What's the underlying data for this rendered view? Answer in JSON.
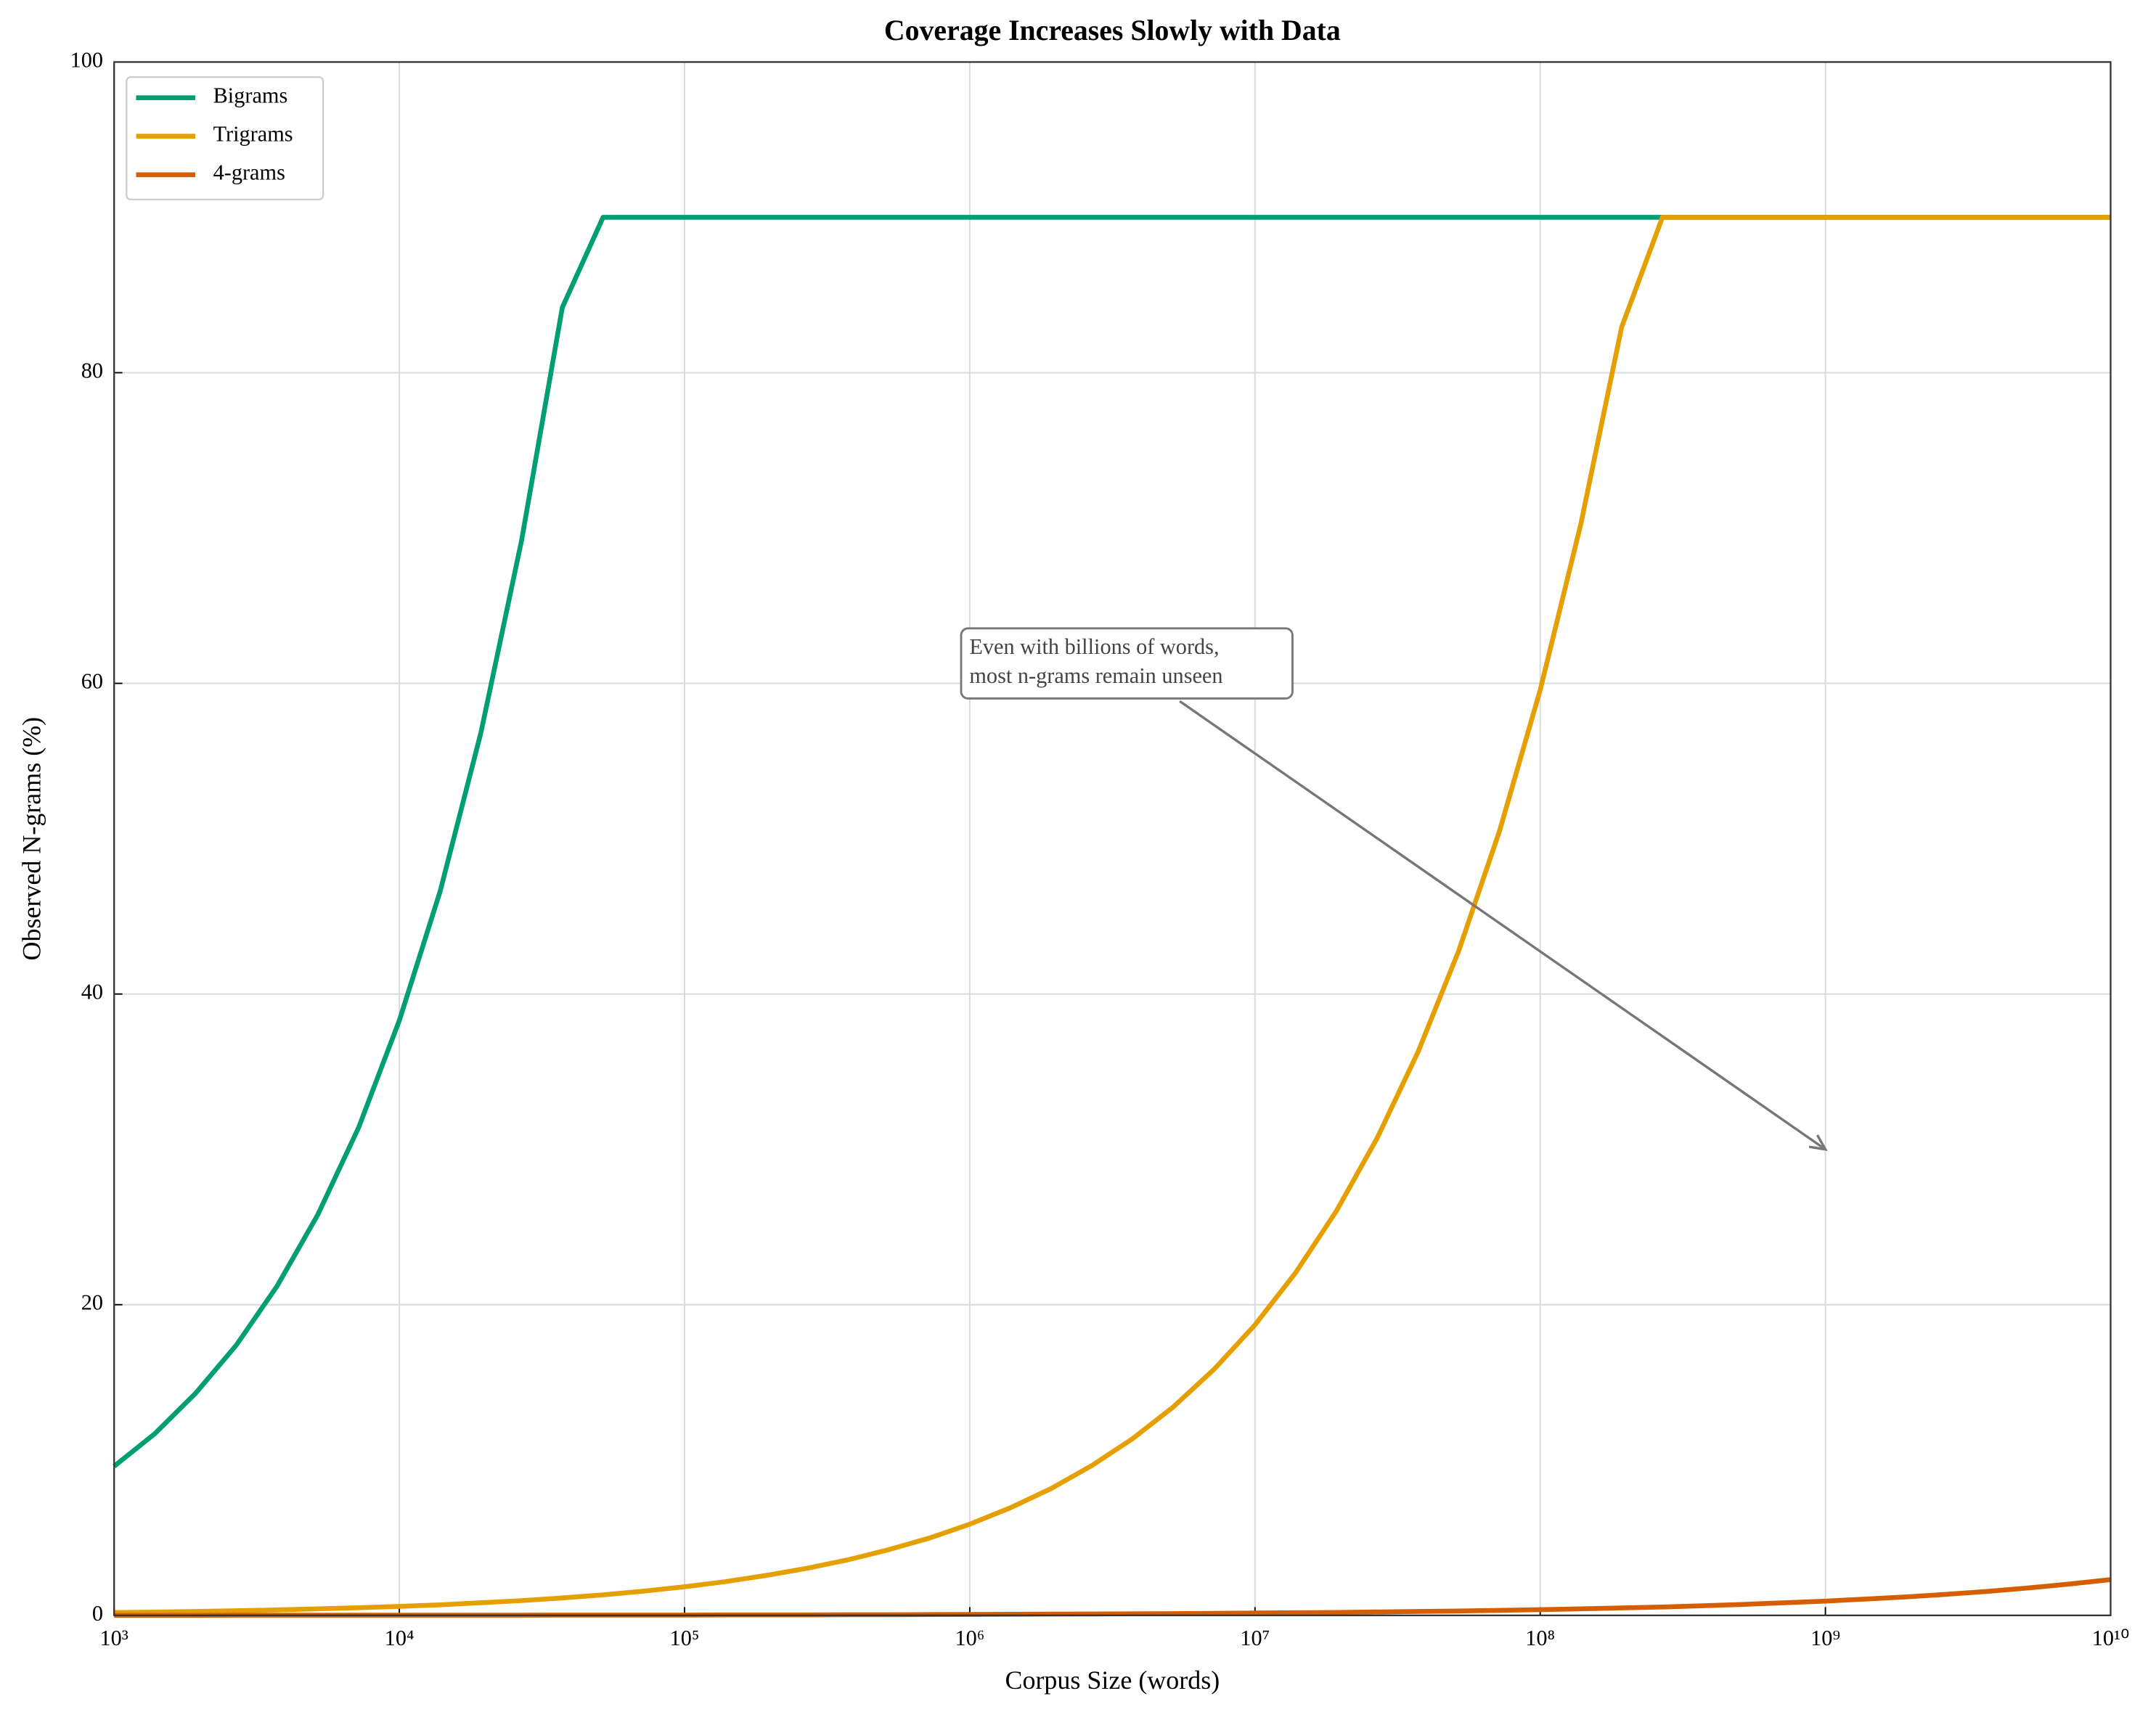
{
  "chart_data": {
    "type": "line",
    "title": "Coverage Increases Slowly with Data",
    "xlabel": "Corpus Size (words)",
    "ylabel": "Observed N-grams (%)",
    "xscale": "log",
    "grid": true,
    "legend": "upper left",
    "x": [
      1000,
      1389.5,
      1930.7,
      2682.7,
      3727.6,
      5179.5,
      7196.9,
      10000,
      13895,
      19307,
      26827,
      37276,
      51795,
      71969,
      100000,
      138950,
      193070,
      268270,
      372760,
      517950,
      719690,
      1000000,
      1389500,
      1930700,
      2682700,
      3727600,
      5179500,
      7196900,
      10000000,
      13895000,
      19307000,
      26827000,
      37276000,
      51795000,
      71969000,
      100000000,
      138950000,
      193070000,
      268270000,
      372760000,
      517950000,
      719690000,
      1000000000,
      1389500000,
      1930700000,
      2682700000,
      3727600000,
      5179500000,
      7196900000,
      10000000000
    ],
    "series": [
      {
        "name": "Bigrams",
        "color": "#009E73",
        "values": [
          9.6,
          11.7,
          14.3,
          17.4,
          21.2,
          25.8,
          31.4,
          38.3,
          46.6,
          56.8,
          69.2,
          84.2,
          90,
          90,
          90,
          90,
          90,
          90,
          90,
          90,
          90,
          90,
          90,
          90,
          90,
          90,
          90,
          90,
          90,
          90,
          90,
          90,
          90,
          90,
          90,
          90,
          90,
          90,
          90,
          90,
          90,
          90,
          90,
          90,
          90,
          90,
          90,
          90,
          90,
          90
        ]
      },
      {
        "name": "Trigrams",
        "color": "#E69F00",
        "values": [
          0.18,
          0.21,
          0.25,
          0.3,
          0.35,
          0.42,
          0.49,
          0.58,
          0.68,
          0.81,
          0.95,
          1.12,
          1.32,
          1.56,
          1.84,
          2.17,
          2.57,
          3.03,
          3.57,
          4.22,
          4.97,
          5.87,
          6.93,
          8.17,
          9.65,
          11.38,
          13.43,
          15.85,
          18.7,
          22.07,
          26.04,
          30.73,
          36.26,
          42.78,
          50.48,
          59.57,
          70.29,
          82.94,
          90,
          90,
          90,
          90,
          90,
          90,
          90,
          90,
          90,
          90,
          90,
          90
        ]
      },
      {
        "name": "4-grams",
        "color": "#D55E00",
        "values": [
          0,
          0,
          0,
          0.01,
          0.01,
          0.01,
          0.01,
          0.01,
          0.01,
          0.01,
          0.01,
          0.02,
          0.02,
          0.02,
          0.02,
          0.03,
          0.03,
          0.03,
          0.04,
          0.04,
          0.05,
          0.06,
          0.07,
          0.08,
          0.09,
          0.1,
          0.11,
          0.13,
          0.15,
          0.17,
          0.19,
          0.22,
          0.25,
          0.28,
          0.32,
          0.37,
          0.42,
          0.48,
          0.54,
          0.62,
          0.71,
          0.81,
          0.92,
          1.05,
          1.19,
          1.36,
          1.55,
          1.77,
          2.02,
          2.3
        ]
      }
    ],
    "xlim": [
      1000,
      10000000000
    ],
    "xticks": [
      {
        "value": 1000,
        "label": "10³"
      },
      {
        "value": 10000,
        "label": "10⁴"
      },
      {
        "value": 100000,
        "label": "10⁵"
      },
      {
        "value": 1000000,
        "label": "10⁶"
      },
      {
        "value": 10000000,
        "label": "10⁷"
      },
      {
        "value": 100000000,
        "label": "10⁸"
      },
      {
        "value": 1000000000,
        "label": "10⁹"
      },
      {
        "value": 10000000000,
        "label": "10¹⁰"
      }
    ],
    "ylim": [
      0,
      100
    ],
    "yticks": [
      0,
      20,
      40,
      60,
      80,
      100
    ],
    "annotation": {
      "text": [
        "Even with billions of words,",
        "most n-grams remain unseen"
      ],
      "xy": [
        1000000000,
        30
      ]
    }
  }
}
